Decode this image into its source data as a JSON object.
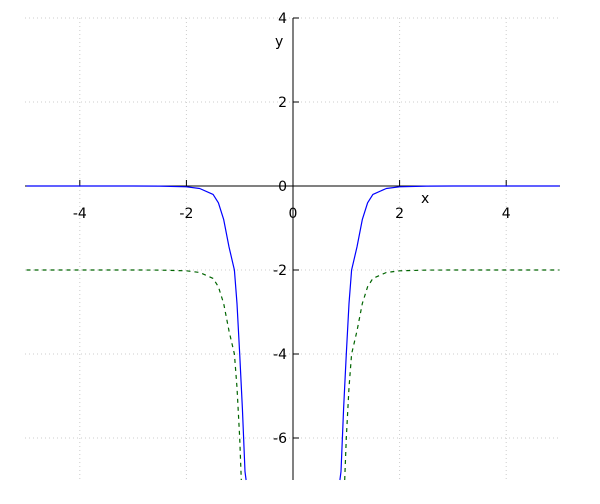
{
  "chart_data": {
    "type": "line",
    "title": "",
    "xlabel": "x",
    "ylabel": "y",
    "xlim": [
      -5,
      5
    ],
    "ylim": [
      -7,
      4
    ],
    "grid": true,
    "x_ticks": [
      -4,
      -2,
      0,
      2,
      4
    ],
    "y_ticks": [
      -6,
      -4,
      -2,
      0,
      2,
      4
    ],
    "x_tick_labels": [
      "-4",
      "-2",
      "0",
      "2",
      "4"
    ],
    "y_tick_labels": [
      "-6",
      "-4",
      "-2",
      "0",
      "2",
      "4"
    ],
    "series": [
      {
        "style": "solid",
        "color": "#0000ff",
        "x": [
          -5,
          -3,
          -2.5,
          -2,
          -1.75,
          -1.5,
          -1.4,
          -1.3,
          -1.2,
          -1.1,
          -1.05,
          -1,
          -0.95,
          -0.9,
          -0.88,
          0.88,
          0.9,
          0.95,
          1,
          1.05,
          1.1,
          1.2,
          1.3,
          1.4,
          1.5,
          1.75,
          2,
          2.5,
          3,
          5
        ],
        "y": [
          0,
          0,
          -0.002,
          -0.02,
          -0.06,
          -0.2,
          -0.4,
          -0.8,
          -1.45,
          -2,
          -2.8,
          -4,
          -5.3,
          -6.8,
          -7,
          -7,
          -6.8,
          -5.3,
          -4,
          -2.8,
          -2,
          -1.45,
          -0.8,
          -0.4,
          -0.2,
          -0.06,
          -0.02,
          -0.002,
          0,
          0
        ]
      },
      {
        "style": "dashed",
        "color": "#006400",
        "x": [
          -5,
          -3,
          -2.5,
          -2,
          -1.75,
          -1.5,
          -1.4,
          -1.3,
          -1.2,
          -1.1,
          -1.05,
          -1,
          -0.97,
          0.97,
          1,
          1.05,
          1.1,
          1.2,
          1.3,
          1.4,
          1.5,
          1.75,
          2,
          2.5,
          3,
          5
        ],
        "y": [
          -2,
          -2,
          -2.002,
          -2.02,
          -2.06,
          -2.2,
          -2.4,
          -2.8,
          -3.45,
          -4,
          -4.8,
          -6,
          -7,
          -7,
          -6,
          -4.8,
          -4,
          -3.45,
          -2.8,
          -2.4,
          -2.2,
          -2.06,
          -2.02,
          -2.002,
          -2,
          -2
        ]
      }
    ]
  }
}
